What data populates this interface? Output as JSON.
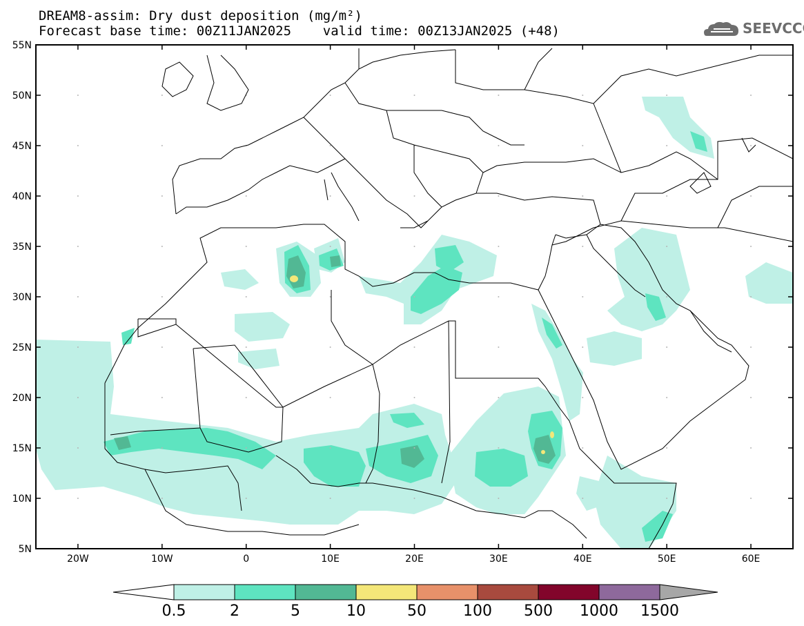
{
  "header": {
    "title_line1": "DREAM8-assim: Dry dust deposition (mg/m²)",
    "title_line2": "Forecast base time: 00Z11JAN2025    valid time: 00Z13JAN2025 (+48)",
    "logo_text": "SEEVCCC"
  },
  "map": {
    "lon_range": [
      -25,
      65
    ],
    "lat_range": [
      5,
      55
    ],
    "lat_ticks": [
      "55N",
      "50N",
      "45N",
      "40N",
      "35N",
      "30N",
      "25N",
      "20N",
      "15N",
      "10N",
      "5N"
    ],
    "lon_ticks": [
      "20W",
      "10W",
      "0",
      "10E",
      "20E",
      "30E",
      "40E",
      "50E",
      "60E"
    ],
    "colors": {
      "c1": "#bff0e6",
      "c2": "#5ee4c0",
      "c3": "#52b894",
      "c4": "#f4e779",
      "c5": "#e8916a",
      "c6": "#a84a3e",
      "c7": "#82052b",
      "c8": "#8e699c",
      "c9": "#a7a7a7",
      "frame": "#000000",
      "border": "#000000",
      "grid": "#b4b4b4"
    }
  },
  "colorbar": {
    "labels": [
      "0.5",
      "2",
      "5",
      "10",
      "50",
      "100",
      "500",
      "1000",
      "1500"
    ],
    "colors": [
      "#bff0e6",
      "#5ee4c0",
      "#52b894",
      "#f4e779",
      "#e8916a",
      "#a84a3e",
      "#82052b",
      "#8e699c"
    ],
    "under_color": "#ffffff",
    "over_color": "#a7a7a7"
  }
}
